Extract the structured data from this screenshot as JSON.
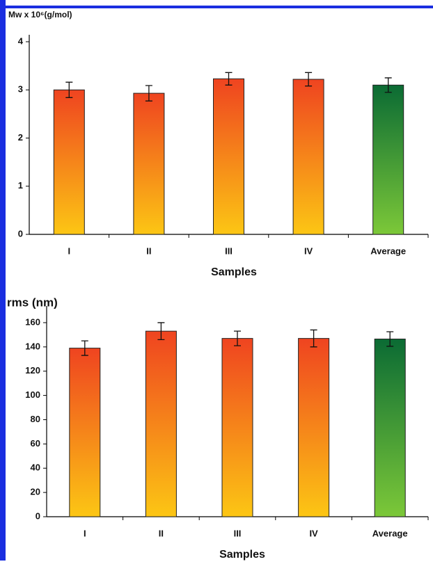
{
  "chart_data": [
    {
      "type": "bar",
      "title": "Mw x 10⁶(g/mol)",
      "x_label": "Samples",
      "categories": [
        "I",
        "II",
        "III",
        "IV",
        "Average"
      ],
      "values": [
        3.0,
        2.93,
        3.23,
        3.22,
        3.1
      ],
      "errors": [
        0.16,
        0.16,
        0.13,
        0.14,
        0.15
      ],
      "bar_colors": [
        [
          "#ef4420",
          "#fcc614"
        ],
        [
          "#ef4420",
          "#fcc614"
        ],
        [
          "#ef4420",
          "#fcc614"
        ],
        [
          "#ef4420",
          "#fcc614"
        ],
        [
          "#0b6b34",
          "#7cc838"
        ]
      ],
      "ylim": [
        0,
        4
      ],
      "yticks": [
        0,
        1,
        2,
        3,
        4
      ]
    },
    {
      "type": "bar",
      "title": "rms (nm)",
      "x_label": "Samples",
      "categories": [
        "I",
        "II",
        "III",
        "IV",
        "Average"
      ],
      "values": [
        139,
        153,
        147,
        147,
        146.5
      ],
      "errors": [
        6,
        7,
        6,
        7,
        6
      ],
      "bar_colors": [
        [
          "#ef4420",
          "#fcc614"
        ],
        [
          "#ef4420",
          "#fcc614"
        ],
        [
          "#ef4420",
          "#fcc614"
        ],
        [
          "#ef4420",
          "#fcc614"
        ],
        [
          "#0b6b34",
          "#7cc838"
        ]
      ],
      "ylim": [
        0,
        168
      ],
      "yticks": [
        0,
        20,
        40,
        60,
        80,
        100,
        120,
        140,
        160
      ]
    }
  ]
}
